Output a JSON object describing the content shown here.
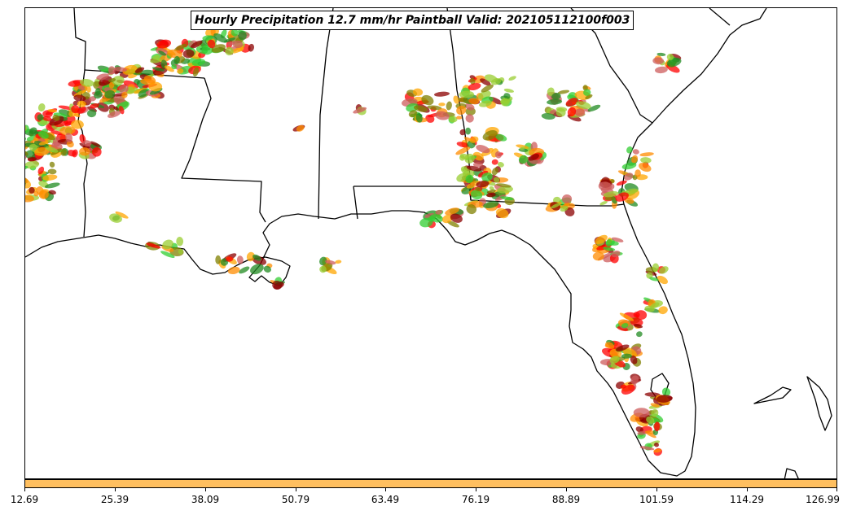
{
  "title": "Hourly Precipitation 12.7 mm/hr Paintball Valid: 202105112100f003",
  "colorbar": {
    "fill_color": "#ffbf5f",
    "tick_labels": [
      "12.69",
      "25.39",
      "38.09",
      "50.79",
      "63.49",
      "76.19",
      "88.89",
      "101.59",
      "114.29",
      "126.99"
    ]
  },
  "colors": {
    "land_outline": "#000000",
    "member_colors": [
      "#ff8c00",
      "#ff0000",
      "#8b0000",
      "#228b22",
      "#32cd32",
      "#808000",
      "#9acd32",
      "#ffa500",
      "#cd5c5c"
    ]
  }
}
